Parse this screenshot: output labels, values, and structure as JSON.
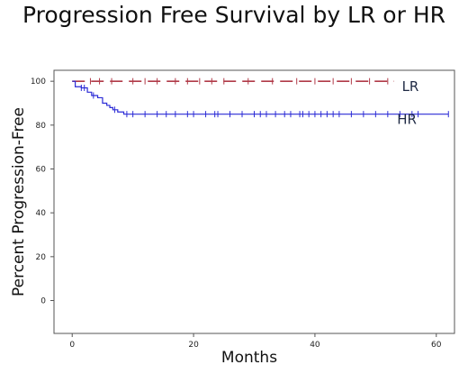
{
  "chart_data": {
    "type": "line",
    "subtype": "kaplan-meier",
    "title": "Progression Free Survival by LR or HR",
    "xlabel": "Months",
    "ylabel": "Percent Progression-Free",
    "xlim": [
      -3,
      63
    ],
    "ylim": [
      -15,
      105
    ],
    "x_ticks": [
      0,
      20,
      40,
      60
    ],
    "y_ticks": [
      0,
      20,
      40,
      60,
      80,
      100
    ],
    "grid": false,
    "series": [
      {
        "name": "LR",
        "color": "#b03a48",
        "dash": true,
        "steps": [
          [
            0,
            100
          ],
          [
            53,
            100
          ]
        ],
        "censored": [
          3,
          4.5,
          6.5,
          10,
          12,
          14,
          17,
          19,
          21,
          23,
          25,
          29,
          33,
          37,
          40,
          43,
          46,
          49,
          52
        ]
      },
      {
        "name": "HR",
        "color": "#2b2bd6",
        "dash": false,
        "steps": [
          [
            0,
            100
          ],
          [
            0.5,
            97.5
          ],
          [
            1.5,
            97
          ],
          [
            2.5,
            95
          ],
          [
            3.2,
            93.5
          ],
          [
            4.2,
            92.5
          ],
          [
            5,
            90
          ],
          [
            5.7,
            89
          ],
          [
            6.2,
            88
          ],
          [
            6.7,
            87
          ],
          [
            7.5,
            86
          ],
          [
            8.5,
            85
          ],
          [
            62,
            85
          ]
        ],
        "censored": [
          1.5,
          2,
          3.5,
          7,
          9,
          10,
          12,
          14,
          15.5,
          17,
          19,
          20,
          22,
          23.5,
          24,
          26,
          28,
          30,
          31,
          32,
          33.5,
          35,
          36,
          37.5,
          38,
          39,
          40,
          41,
          42,
          43,
          44,
          46,
          48,
          50,
          52,
          54,
          56,
          57,
          62
        ]
      }
    ]
  }
}
